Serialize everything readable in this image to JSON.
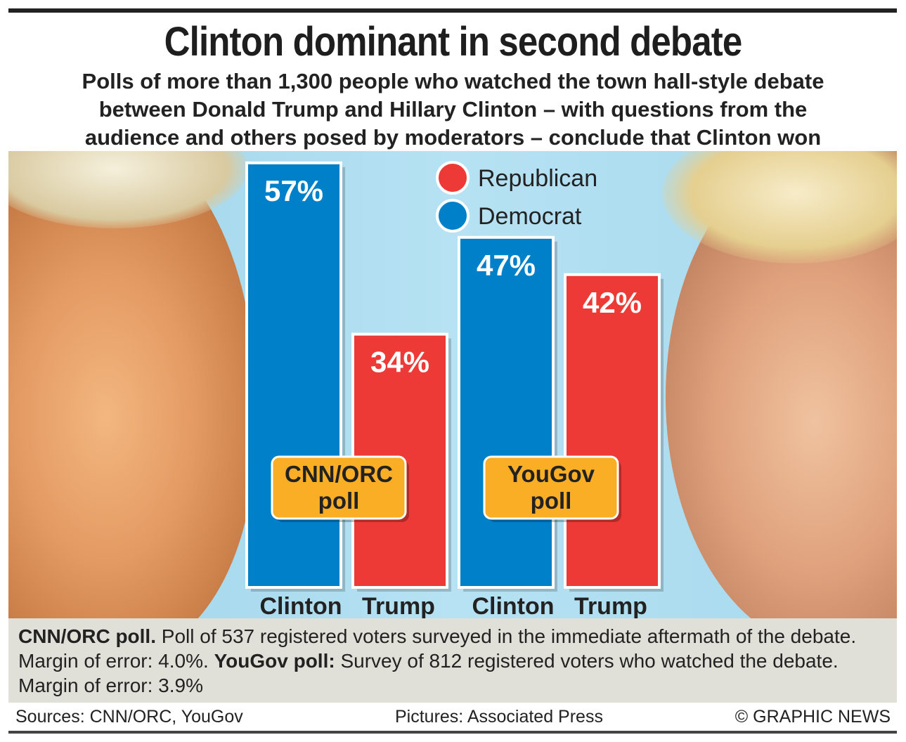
{
  "title": "Clinton dominant in second debate",
  "subtitle": [
    "Polls of more than 1,300 people who watched the town hall-style debate",
    "between Donald Trump and Hillary Clinton – with questions from the",
    "audience and others posed by moderators – conclude that Clinton won"
  ],
  "chart_data": {
    "type": "bar",
    "groups": [
      {
        "name": "CNN/ORC poll",
        "label_lines": [
          "CNN/ORC",
          "poll"
        ],
        "categories": [
          "Clinton",
          "Trump"
        ],
        "values": [
          57,
          34
        ]
      },
      {
        "name": "YouGov poll",
        "label_lines": [
          "YouGov",
          "poll"
        ],
        "categories": [
          "Clinton",
          "Trump"
        ],
        "values": [
          47,
          42
        ]
      }
    ],
    "value_labels": [
      [
        "57%",
        "34%"
      ],
      [
        "47%",
        "42%"
      ]
    ],
    "legend": [
      {
        "name": "Republican",
        "color": "#ee3a36"
      },
      {
        "name": "Democrat",
        "color": "#0080c8"
      }
    ],
    "legend_position": "top-center",
    "ylim": [
      0,
      60
    ],
    "colors": {
      "Clinton": "#0080c8",
      "Trump": "#ee3a36",
      "poll_label": "#f9ae26"
    }
  },
  "notes": {
    "cnn_bold": "CNN/ORC poll.",
    "cnn_text": " Poll of 537 registered voters surveyed in the immediate aftermath of the debate. Margin of error: 4.0%. ",
    "yougov_bold": "YouGov poll:",
    "yougov_text": " Survey of 812 registered voters who watched the debate. Margin of error: 3.9%"
  },
  "footer": {
    "sources": "Sources: CNN/ORC, YouGov",
    "pictures": "Pictures: Associated Press",
    "credit": "© GRAPHIC NEWS"
  }
}
